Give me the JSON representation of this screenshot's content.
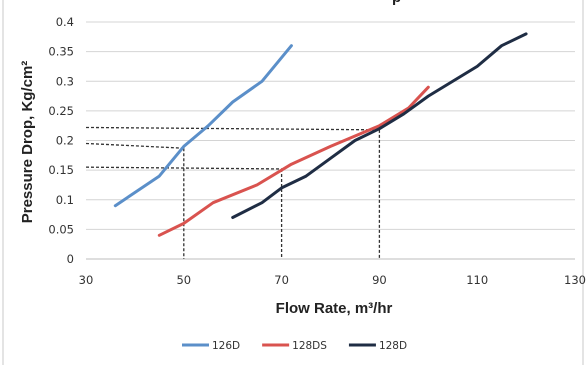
{
  "chart_data": {
    "type": "line",
    "title_visible_fragment": "p",
    "xlabel": "Flow Rate, m³/hr",
    "ylabel": "Pressure Drop, Kg/cm²",
    "xlim": [
      30,
      130
    ],
    "ylim": [
      0,
      0.4
    ],
    "xticks": [
      "30",
      "50",
      "70",
      "90",
      "110",
      "130"
    ],
    "yticks": [
      "0",
      "0.05",
      "0.1",
      "0.15",
      "0.2",
      "0.25",
      "0.3",
      "0.35",
      "0.4"
    ],
    "grid": "horizontal",
    "legend_position": "bottom",
    "series": [
      {
        "name": "126D",
        "color": "#5b8fc9",
        "points": [
          [
            36,
            0.09
          ],
          [
            45,
            0.14
          ],
          [
            50,
            0.19
          ],
          [
            55,
            0.225
          ],
          [
            60,
            0.265
          ],
          [
            66,
            0.3
          ],
          [
            72,
            0.36
          ]
        ]
      },
      {
        "name": "128DS",
        "color": "#d9534f",
        "points": [
          [
            45,
            0.04
          ],
          [
            50,
            0.06
          ],
          [
            56,
            0.095
          ],
          [
            65,
            0.125
          ],
          [
            72,
            0.16
          ],
          [
            80,
            0.19
          ],
          [
            90,
            0.225
          ],
          [
            96,
            0.255
          ],
          [
            100,
            0.29
          ]
        ]
      },
      {
        "name": "128D",
        "color": "#1f2d44",
        "points": [
          [
            60,
            0.07
          ],
          [
            66,
            0.095
          ],
          [
            70,
            0.12
          ],
          [
            75,
            0.14
          ],
          [
            80,
            0.17
          ],
          [
            85,
            0.2
          ],
          [
            90,
            0.22
          ],
          [
            95,
            0.245
          ],
          [
            100,
            0.275
          ],
          [
            110,
            0.325
          ],
          [
            115,
            0.36
          ],
          [
            120,
            0.38
          ]
        ]
      }
    ],
    "reference_lines": [
      {
        "flow": 50,
        "pressure": 0.187,
        "y_origin": 0.195
      },
      {
        "flow": 70,
        "pressure": 0.152,
        "y_origin": 0.155
      },
      {
        "flow": 90,
        "pressure": 0.218,
        "y_origin": 0.222
      }
    ]
  }
}
